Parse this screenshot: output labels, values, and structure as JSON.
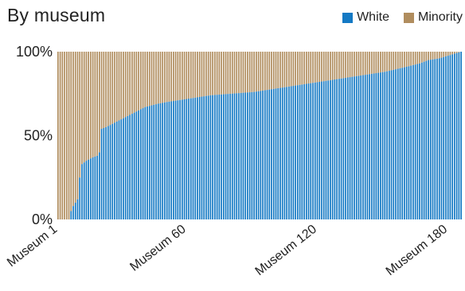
{
  "title": "By museum",
  "legend": [
    {
      "label": "White",
      "color": "#1479c4"
    },
    {
      "label": "Minority",
      "color": "#b08d5e"
    }
  ],
  "chart_data": {
    "type": "bar",
    "stacked": true,
    "normalized": true,
    "categories_count": 186,
    "x_tick_labels": [
      {
        "label": "Museum 1",
        "index": 0
      },
      {
        "label": "Museum 60",
        "index": 59
      },
      {
        "label": "Museum 120",
        "index": 119
      },
      {
        "label": "Museum 180",
        "index": 179
      }
    ],
    "y_tick_labels": [
      "0%",
      "50%",
      "100%"
    ],
    "ylim": [
      0,
      100
    ],
    "grid": false,
    "legend_position": "top-right",
    "series": [
      {
        "name": "White",
        "color": "#1479c4",
        "profile": [
          [
            0,
            0
          ],
          [
            5,
            0
          ],
          [
            6,
            5
          ],
          [
            7,
            8
          ],
          [
            8,
            10
          ],
          [
            9,
            12
          ],
          [
            10,
            25
          ],
          [
            11,
            33
          ],
          [
            13,
            35
          ],
          [
            16,
            37
          ],
          [
            18,
            38
          ],
          [
            19,
            40
          ],
          [
            20,
            54
          ],
          [
            22,
            55
          ],
          [
            25,
            57
          ],
          [
            28,
            59
          ],
          [
            31,
            61
          ],
          [
            34,
            63
          ],
          [
            37,
            65
          ],
          [
            40,
            67
          ],
          [
            43,
            68
          ],
          [
            46,
            69
          ],
          [
            50,
            70
          ],
          [
            55,
            71
          ],
          [
            60,
            72
          ],
          [
            65,
            73
          ],
          [
            70,
            74
          ],
          [
            80,
            75
          ],
          [
            90,
            76
          ],
          [
            95,
            77
          ],
          [
            100,
            78
          ],
          [
            110,
            80
          ],
          [
            120,
            82
          ],
          [
            130,
            84
          ],
          [
            140,
            86
          ],
          [
            150,
            88
          ],
          [
            160,
            91
          ],
          [
            166,
            93
          ],
          [
            170,
            95
          ],
          [
            175,
            96
          ],
          [
            180,
            98
          ],
          [
            185,
            100
          ]
        ]
      },
      {
        "name": "Minority",
        "color": "#b08d5e",
        "complement_of": "White"
      }
    ]
  }
}
